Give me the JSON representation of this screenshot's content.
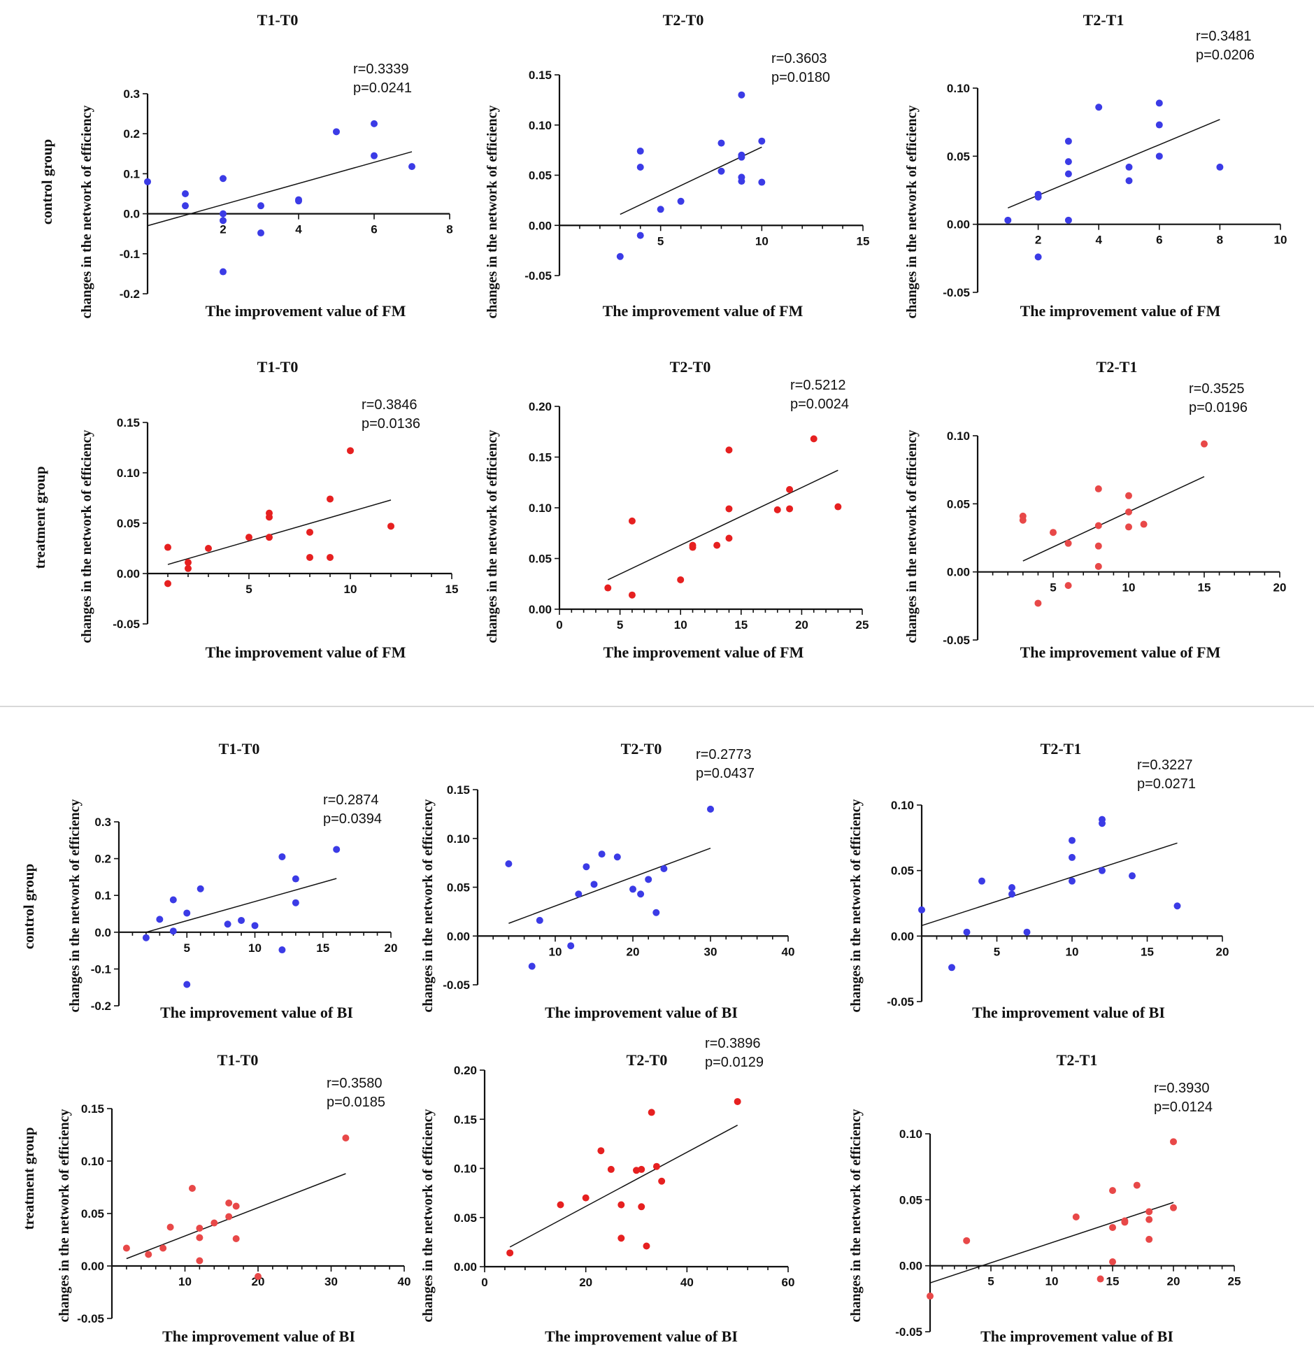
{
  "colors": {
    "control": "#3b3be6",
    "treatment": "#e62020",
    "treatment_light": "#e84848"
  },
  "labels": {
    "control_group": "control group",
    "treatment_group": "treatment group",
    "treatment_group_alt": "treatment  group"
  },
  "chart_data": [
    {
      "id": "fm-c-t1t0",
      "type": "scatter",
      "title": "T1-T0",
      "xlabel": "The improvement value of FM",
      "ylabel": "changes in the network of efficiency",
      "xlim": [
        0,
        8
      ],
      "ylim": [
        -0.2,
        0.3
      ],
      "xticks": [
        2,
        4,
        6,
        8
      ],
      "yticks": [
        -0.2,
        -0.1,
        0.0,
        0.1,
        0.2,
        0.3
      ],
      "xminor": 0,
      "x_axis_at_zero": true,
      "r": "r=0.3339",
      "p": "p=0.0241",
      "fit": [
        [
          0,
          -0.03
        ],
        [
          7,
          0.155
        ]
      ],
      "color": "control",
      "points": [
        [
          0,
          0.08
        ],
        [
          1,
          0.05
        ],
        [
          1,
          0.02
        ],
        [
          2,
          0.088
        ],
        [
          2,
          0.0
        ],
        [
          2,
          -0.017
        ],
        [
          2,
          -0.145
        ],
        [
          3,
          0.02
        ],
        [
          3,
          -0.048
        ],
        [
          4,
          0.035
        ],
        [
          4,
          0.032
        ],
        [
          5,
          0.205
        ],
        [
          6,
          0.225
        ],
        [
          6,
          0.145
        ],
        [
          7,
          0.118
        ]
      ]
    },
    {
      "id": "fm-c-t2t0",
      "type": "scatter",
      "title": "T2-T0",
      "xlabel": "The improvement value of FM",
      "ylabel": "changes in the network of efficiency",
      "xlim": [
        0,
        15
      ],
      "ylim": [
        -0.05,
        0.15
      ],
      "xticks": [
        5,
        10,
        15
      ],
      "yticks": [
        -0.05,
        0.0,
        0.05,
        0.1,
        0.15
      ],
      "xminor": 1,
      "x_axis_at_zero": true,
      "r": "r=0.3603",
      "p": "p=0.0180",
      "fit": [
        [
          3,
          0.011
        ],
        [
          10,
          0.078
        ]
      ],
      "color": "control",
      "points": [
        [
          3,
          -0.031
        ],
        [
          4,
          0.074
        ],
        [
          4,
          0.058
        ],
        [
          4,
          -0.01
        ],
        [
          5,
          0.016
        ],
        [
          6,
          0.024
        ],
        [
          8,
          0.082
        ],
        [
          8,
          0.054
        ],
        [
          9,
          0.13
        ],
        [
          9,
          0.07
        ],
        [
          9,
          0.068
        ],
        [
          9,
          0.048
        ],
        [
          9,
          0.044
        ],
        [
          10,
          0.084
        ],
        [
          10,
          0.043
        ]
      ]
    },
    {
      "id": "fm-c-t2t1",
      "type": "scatter",
      "title": "T2-T1",
      "xlabel": "The improvement value of FM",
      "ylabel": "changes in the network of efficiency",
      "xlim": [
        0,
        10
      ],
      "ylim": [
        -0.05,
        0.1
      ],
      "xticks": [
        2,
        4,
        6,
        8,
        10
      ],
      "yticks": [
        -0.05,
        0.0,
        0.05,
        0.1
      ],
      "xminor": 0,
      "x_axis_at_zero": true,
      "r": "r=0.3481",
      "p": "p=0.0206",
      "fit": [
        [
          1,
          0.012
        ],
        [
          8,
          0.077
        ]
      ],
      "color": "control",
      "points": [
        [
          1,
          0.003
        ],
        [
          2,
          0.022
        ],
        [
          2,
          0.02
        ],
        [
          2,
          -0.024
        ],
        [
          3,
          0.061
        ],
        [
          3,
          0.046
        ],
        [
          3,
          0.037
        ],
        [
          3,
          0.003
        ],
        [
          4,
          0.086
        ],
        [
          5,
          0.042
        ],
        [
          5,
          0.032
        ],
        [
          6,
          0.089
        ],
        [
          6,
          0.073
        ],
        [
          6,
          0.05
        ],
        [
          8,
          0.042
        ]
      ]
    },
    {
      "id": "fm-t-t1t0",
      "type": "scatter",
      "title": "T1-T0",
      "xlabel": "The improvement value of FM",
      "ylabel": "changes in the network of efficiency",
      "xlim": [
        0,
        15
      ],
      "ylim": [
        -0.05,
        0.15
      ],
      "xticks": [
        5,
        10,
        15
      ],
      "yticks": [
        -0.05,
        0.0,
        0.05,
        0.1,
        0.15
      ],
      "xminor": 1,
      "x_axis_at_zero": true,
      "r": "r=0.3846",
      "p": "p=0.0136",
      "fit": [
        [
          1,
          0.009
        ],
        [
          12,
          0.073
        ]
      ],
      "color": "treatment",
      "points": [
        [
          1,
          0.026
        ],
        [
          1,
          -0.01
        ],
        [
          2,
          0.011
        ],
        [
          2,
          0.005
        ],
        [
          3,
          0.025
        ],
        [
          5,
          0.036
        ],
        [
          6,
          0.06
        ],
        [
          6,
          0.056
        ],
        [
          6,
          0.036
        ],
        [
          8,
          0.041
        ],
        [
          8,
          0.016
        ],
        [
          9,
          0.074
        ],
        [
          9,
          0.016
        ],
        [
          10,
          0.122
        ],
        [
          12,
          0.047
        ]
      ]
    },
    {
      "id": "fm-t-t2t0",
      "type": "scatter",
      "title": "T2-T0",
      "xlabel": "The improvement value of FM",
      "ylabel": "changes in the network of efficiency",
      "xlim": [
        0,
        25
      ],
      "ylim": [
        0.0,
        0.2
      ],
      "xticks": [
        0,
        5,
        10,
        15,
        20,
        25
      ],
      "yticks": [
        0.0,
        0.05,
        0.1,
        0.15,
        0.2
      ],
      "xminor": 1,
      "x_axis_at_zero": false,
      "r": "r=0.5212",
      "p": "p=0.0024",
      "fit": [
        [
          4,
          0.029
        ],
        [
          23,
          0.137
        ]
      ],
      "color": "treatment",
      "points": [
        [
          4,
          0.021
        ],
        [
          6,
          0.087
        ],
        [
          6,
          0.014
        ],
        [
          10,
          0.029
        ],
        [
          11,
          0.063
        ],
        [
          11,
          0.061
        ],
        [
          13,
          0.063
        ],
        [
          14,
          0.157
        ],
        [
          14,
          0.099
        ],
        [
          14,
          0.07
        ],
        [
          18,
          0.098
        ],
        [
          19,
          0.118
        ],
        [
          19,
          0.099
        ],
        [
          21,
          0.168
        ],
        [
          23,
          0.101
        ]
      ]
    },
    {
      "id": "fm-t-t2t1",
      "type": "scatter",
      "title": "T2-T1",
      "xlabel": "The improvement value of FM",
      "ylabel": "changes in the network of efficiency",
      "xlim": [
        0,
        20
      ],
      "ylim": [
        -0.05,
        0.1
      ],
      "xticks": [
        5,
        10,
        15,
        20
      ],
      "yticks": [
        -0.05,
        0.0,
        0.05,
        0.1
      ],
      "xminor": 1,
      "x_axis_at_zero": true,
      "r": "r=0.3525",
      "p": "p=0.0196",
      "fit": [
        [
          3,
          0.008
        ],
        [
          15,
          0.07
        ]
      ],
      "color": "treatment_light",
      "points": [
        [
          3,
          0.041
        ],
        [
          3,
          0.038
        ],
        [
          4,
          -0.023
        ],
        [
          5,
          0.029
        ],
        [
          6,
          0.021
        ],
        [
          6,
          -0.01
        ],
        [
          8,
          0.061
        ],
        [
          8,
          0.034
        ],
        [
          8,
          0.019
        ],
        [
          8,
          0.004
        ],
        [
          10,
          0.056
        ],
        [
          10,
          0.044
        ],
        [
          10,
          0.033
        ],
        [
          11,
          0.035
        ],
        [
          15,
          0.094
        ]
      ]
    },
    {
      "id": "bi-c-t1t0",
      "type": "scatter",
      "title": "T1-T0",
      "xlabel": "The improvement value of BI",
      "ylabel": "changes in the network of efficiency",
      "xlim": [
        0,
        20
      ],
      "ylim": [
        -0.2,
        0.3
      ],
      "xticks": [
        5,
        10,
        15,
        20
      ],
      "yticks": [
        -0.2,
        -0.1,
        0.0,
        0.1,
        0.2,
        0.3
      ],
      "xminor": 1,
      "x_axis_at_zero": true,
      "r": "r=0.2874",
      "p": "p=0.0394",
      "fit": [
        [
          2,
          0.0
        ],
        [
          16,
          0.146
        ]
      ],
      "color": "control",
      "points": [
        [
          2,
          -0.015
        ],
        [
          3,
          0.035
        ],
        [
          4,
          0.088
        ],
        [
          4,
          0.003
        ],
        [
          5,
          0.052
        ],
        [
          5,
          -0.142
        ],
        [
          6,
          0.118
        ],
        [
          8,
          0.022
        ],
        [
          9,
          0.032
        ],
        [
          10,
          0.018
        ],
        [
          12,
          0.205
        ],
        [
          12,
          -0.048
        ],
        [
          13,
          0.145
        ],
        [
          13,
          0.08
        ],
        [
          16,
          0.225
        ]
      ]
    },
    {
      "id": "bi-c-t2t0",
      "type": "scatter",
      "title": "T2-T0",
      "xlabel": "The improvement value of BI",
      "ylabel": "changes in the network of efficiency",
      "xlim": [
        0,
        40
      ],
      "ylim": [
        -0.05,
        0.15
      ],
      "xticks": [
        10,
        20,
        30,
        40
      ],
      "yticks": [
        -0.05,
        0.0,
        0.05,
        0.1,
        0.15
      ],
      "xminor": 1,
      "x_axis_at_zero": true,
      "r": "r=0.2773",
      "p": "p=0.0437",
      "fit": [
        [
          4,
          0.013
        ],
        [
          30,
          0.09
        ]
      ],
      "color": "control",
      "points": [
        [
          4,
          0.074
        ],
        [
          7,
          -0.031
        ],
        [
          8,
          0.016
        ],
        [
          12,
          -0.01
        ],
        [
          13,
          0.043
        ],
        [
          14,
          0.071
        ],
        [
          15,
          0.053
        ],
        [
          16,
          0.084
        ],
        [
          18,
          0.081
        ],
        [
          20,
          0.048
        ],
        [
          21,
          0.043
        ],
        [
          22,
          0.058
        ],
        [
          23,
          0.024
        ],
        [
          24,
          0.069
        ],
        [
          30,
          0.13
        ]
      ]
    },
    {
      "id": "bi-c-t2t1",
      "type": "scatter",
      "title": "T2-T1",
      "xlabel": "The improvement value of BI",
      "ylabel": "changes in the network of efficiency",
      "xlim": [
        0,
        20
      ],
      "ylim": [
        -0.05,
        0.1
      ],
      "xticks": [
        5,
        10,
        15,
        20
      ],
      "yticks": [
        -0.05,
        0.0,
        0.05,
        0.1
      ],
      "xminor": 1,
      "x_axis_at_zero": true,
      "r": "r=0.3227",
      "p": "p=0.0271",
      "fit": [
        [
          0,
          0.008
        ],
        [
          17,
          0.071
        ]
      ],
      "color": "control",
      "points": [
        [
          0,
          0.02
        ],
        [
          2,
          -0.024
        ],
        [
          3,
          0.003
        ],
        [
          4,
          0.042
        ],
        [
          6,
          0.037
        ],
        [
          6,
          0.032
        ],
        [
          7,
          0.003
        ],
        [
          10,
          0.073
        ],
        [
          10,
          0.06
        ],
        [
          10,
          0.042
        ],
        [
          12,
          0.089
        ],
        [
          12,
          0.086
        ],
        [
          12,
          0.05
        ],
        [
          14,
          0.046
        ],
        [
          17,
          0.023
        ]
      ]
    },
    {
      "id": "bi-t-t1t0",
      "type": "scatter",
      "title": "T1-T0",
      "xlabel": "The improvement value of BI",
      "ylabel": "changes in the network of efficiency",
      "xlim": [
        0,
        40
      ],
      "ylim": [
        -0.05,
        0.15
      ],
      "xticks": [
        10,
        20,
        30,
        40
      ],
      "yticks": [
        -0.05,
        0.0,
        0.05,
        0.1,
        0.15
      ],
      "xminor": 1,
      "x_axis_at_zero": true,
      "r": "r=0.3580",
      "p": "p=0.0185",
      "fit": [
        [
          2,
          0.007
        ],
        [
          32,
          0.088
        ]
      ],
      "color": "treatment_light",
      "points": [
        [
          2,
          0.017
        ],
        [
          5,
          0.011
        ],
        [
          7,
          0.017
        ],
        [
          8,
          0.037
        ],
        [
          11,
          0.074
        ],
        [
          12,
          0.036
        ],
        [
          12,
          0.027
        ],
        [
          12,
          0.005
        ],
        [
          14,
          0.041
        ],
        [
          16,
          0.06
        ],
        [
          16,
          0.047
        ],
        [
          17,
          0.057
        ],
        [
          17,
          0.026
        ],
        [
          20,
          -0.01
        ],
        [
          32,
          0.122
        ]
      ]
    },
    {
      "id": "bi-t-t2t0",
      "type": "scatter",
      "title": "T2-T0",
      "xlabel": "The improvement value of BI",
      "ylabel": "changes in the network of efficiency",
      "xlim": [
        0,
        60
      ],
      "ylim": [
        0.0,
        0.2
      ],
      "xticks": [
        0,
        20,
        40,
        60
      ],
      "yticks": [
        0.0,
        0.05,
        0.1,
        0.15,
        0.2
      ],
      "xminor": 1,
      "x_axis_at_zero": false,
      "r": "r=0.3896",
      "p": "p=0.0129",
      "fit": [
        [
          5,
          0.02
        ],
        [
          50,
          0.144
        ]
      ],
      "color": "treatment",
      "points": [
        [
          5,
          0.014
        ],
        [
          15,
          0.063
        ],
        [
          20,
          0.07
        ],
        [
          23,
          0.118
        ],
        [
          25,
          0.099
        ],
        [
          27,
          0.063
        ],
        [
          27,
          0.029
        ],
        [
          30,
          0.098
        ],
        [
          31,
          0.099
        ],
        [
          31,
          0.061
        ],
        [
          32,
          0.021
        ],
        [
          33,
          0.157
        ],
        [
          34,
          0.102
        ],
        [
          35,
          0.087
        ],
        [
          50,
          0.168
        ]
      ]
    },
    {
      "id": "bi-t-t2t1",
      "type": "scatter",
      "title": "T2-T1",
      "xlabel": "The improvement value of BI",
      "ylabel": "changes in the network of efficiency",
      "xlim": [
        0,
        25
      ],
      "ylim": [
        -0.05,
        0.1
      ],
      "xticks": [
        5,
        10,
        15,
        20,
        25
      ],
      "yticks": [
        -0.05,
        0.0,
        0.05,
        0.1
      ],
      "xminor": 1,
      "x_axis_at_zero": true,
      "r": "r=0.3930",
      "p": "p=0.0124",
      "fit": [
        [
          0,
          -0.013
        ],
        [
          20,
          0.048
        ]
      ],
      "color": "treatment_light",
      "points": [
        [
          0,
          -0.023
        ],
        [
          3,
          0.019
        ],
        [
          12,
          0.037
        ],
        [
          14,
          -0.01
        ],
        [
          15,
          0.057
        ],
        [
          15,
          0.029
        ],
        [
          15,
          0.003
        ],
        [
          16,
          0.033
        ],
        [
          16,
          0.034
        ],
        [
          17,
          0.061
        ],
        [
          18,
          0.041
        ],
        [
          18,
          0.035
        ],
        [
          18,
          0.02
        ],
        [
          20,
          0.094
        ],
        [
          20,
          0.044
        ]
      ]
    }
  ]
}
